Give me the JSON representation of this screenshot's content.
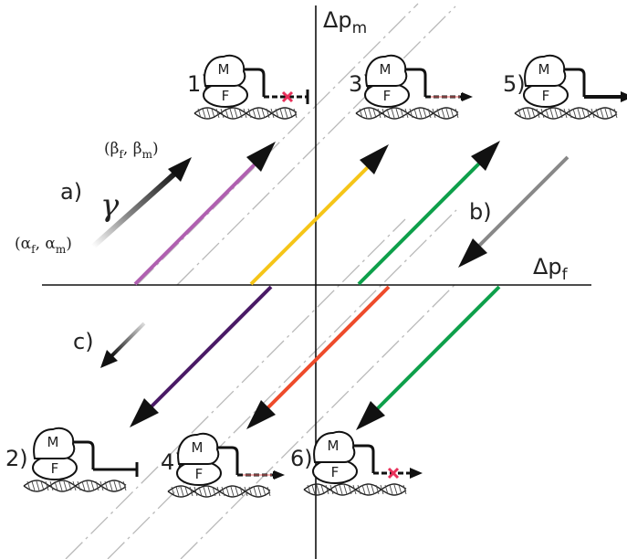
{
  "axes": {
    "x_label": "Δp",
    "x_sub": "f",
    "y_label": "Δp",
    "y_sub": "m"
  },
  "legend": {
    "a_label": "a)",
    "b_label": "b)",
    "c_label": "c)",
    "gamma": "γ",
    "start_point": {
      "open": "(α",
      "s1": "f",
      "mid": ", α",
      "s2": "m",
      "close": ")"
    },
    "end_point": {
      "open": "(β",
      "s1": "f",
      "mid": ", β",
      "s2": "m",
      "close": ")"
    }
  },
  "complexes": [
    {
      "id": "1",
      "label": "1)",
      "top": "M",
      "bottom": "F",
      "state": "blocked-dashed"
    },
    {
      "id": "2",
      "label": "2)",
      "top": "M",
      "bottom": "F",
      "state": "repressed-solid"
    },
    {
      "id": "3",
      "label": "3)",
      "top": "M",
      "bottom": "F",
      "state": "weak-activation"
    },
    {
      "id": "4",
      "label": "4)",
      "top": "M",
      "bottom": "F",
      "state": "weak-activation"
    },
    {
      "id": "5",
      "label": "5)",
      "top": "M",
      "bottom": "F",
      "state": "activation"
    },
    {
      "id": "6",
      "label": "6)",
      "top": "M",
      "bottom": "F",
      "state": "blocked-activation"
    }
  ],
  "colors": {
    "purple_light": "#b060b0",
    "yellow": "#f5c518",
    "green": "#0ea04b",
    "grey": "#888888",
    "purple_dark": "#4a1a66",
    "red": "#ee4b2b",
    "cross": "#e8305a"
  }
}
